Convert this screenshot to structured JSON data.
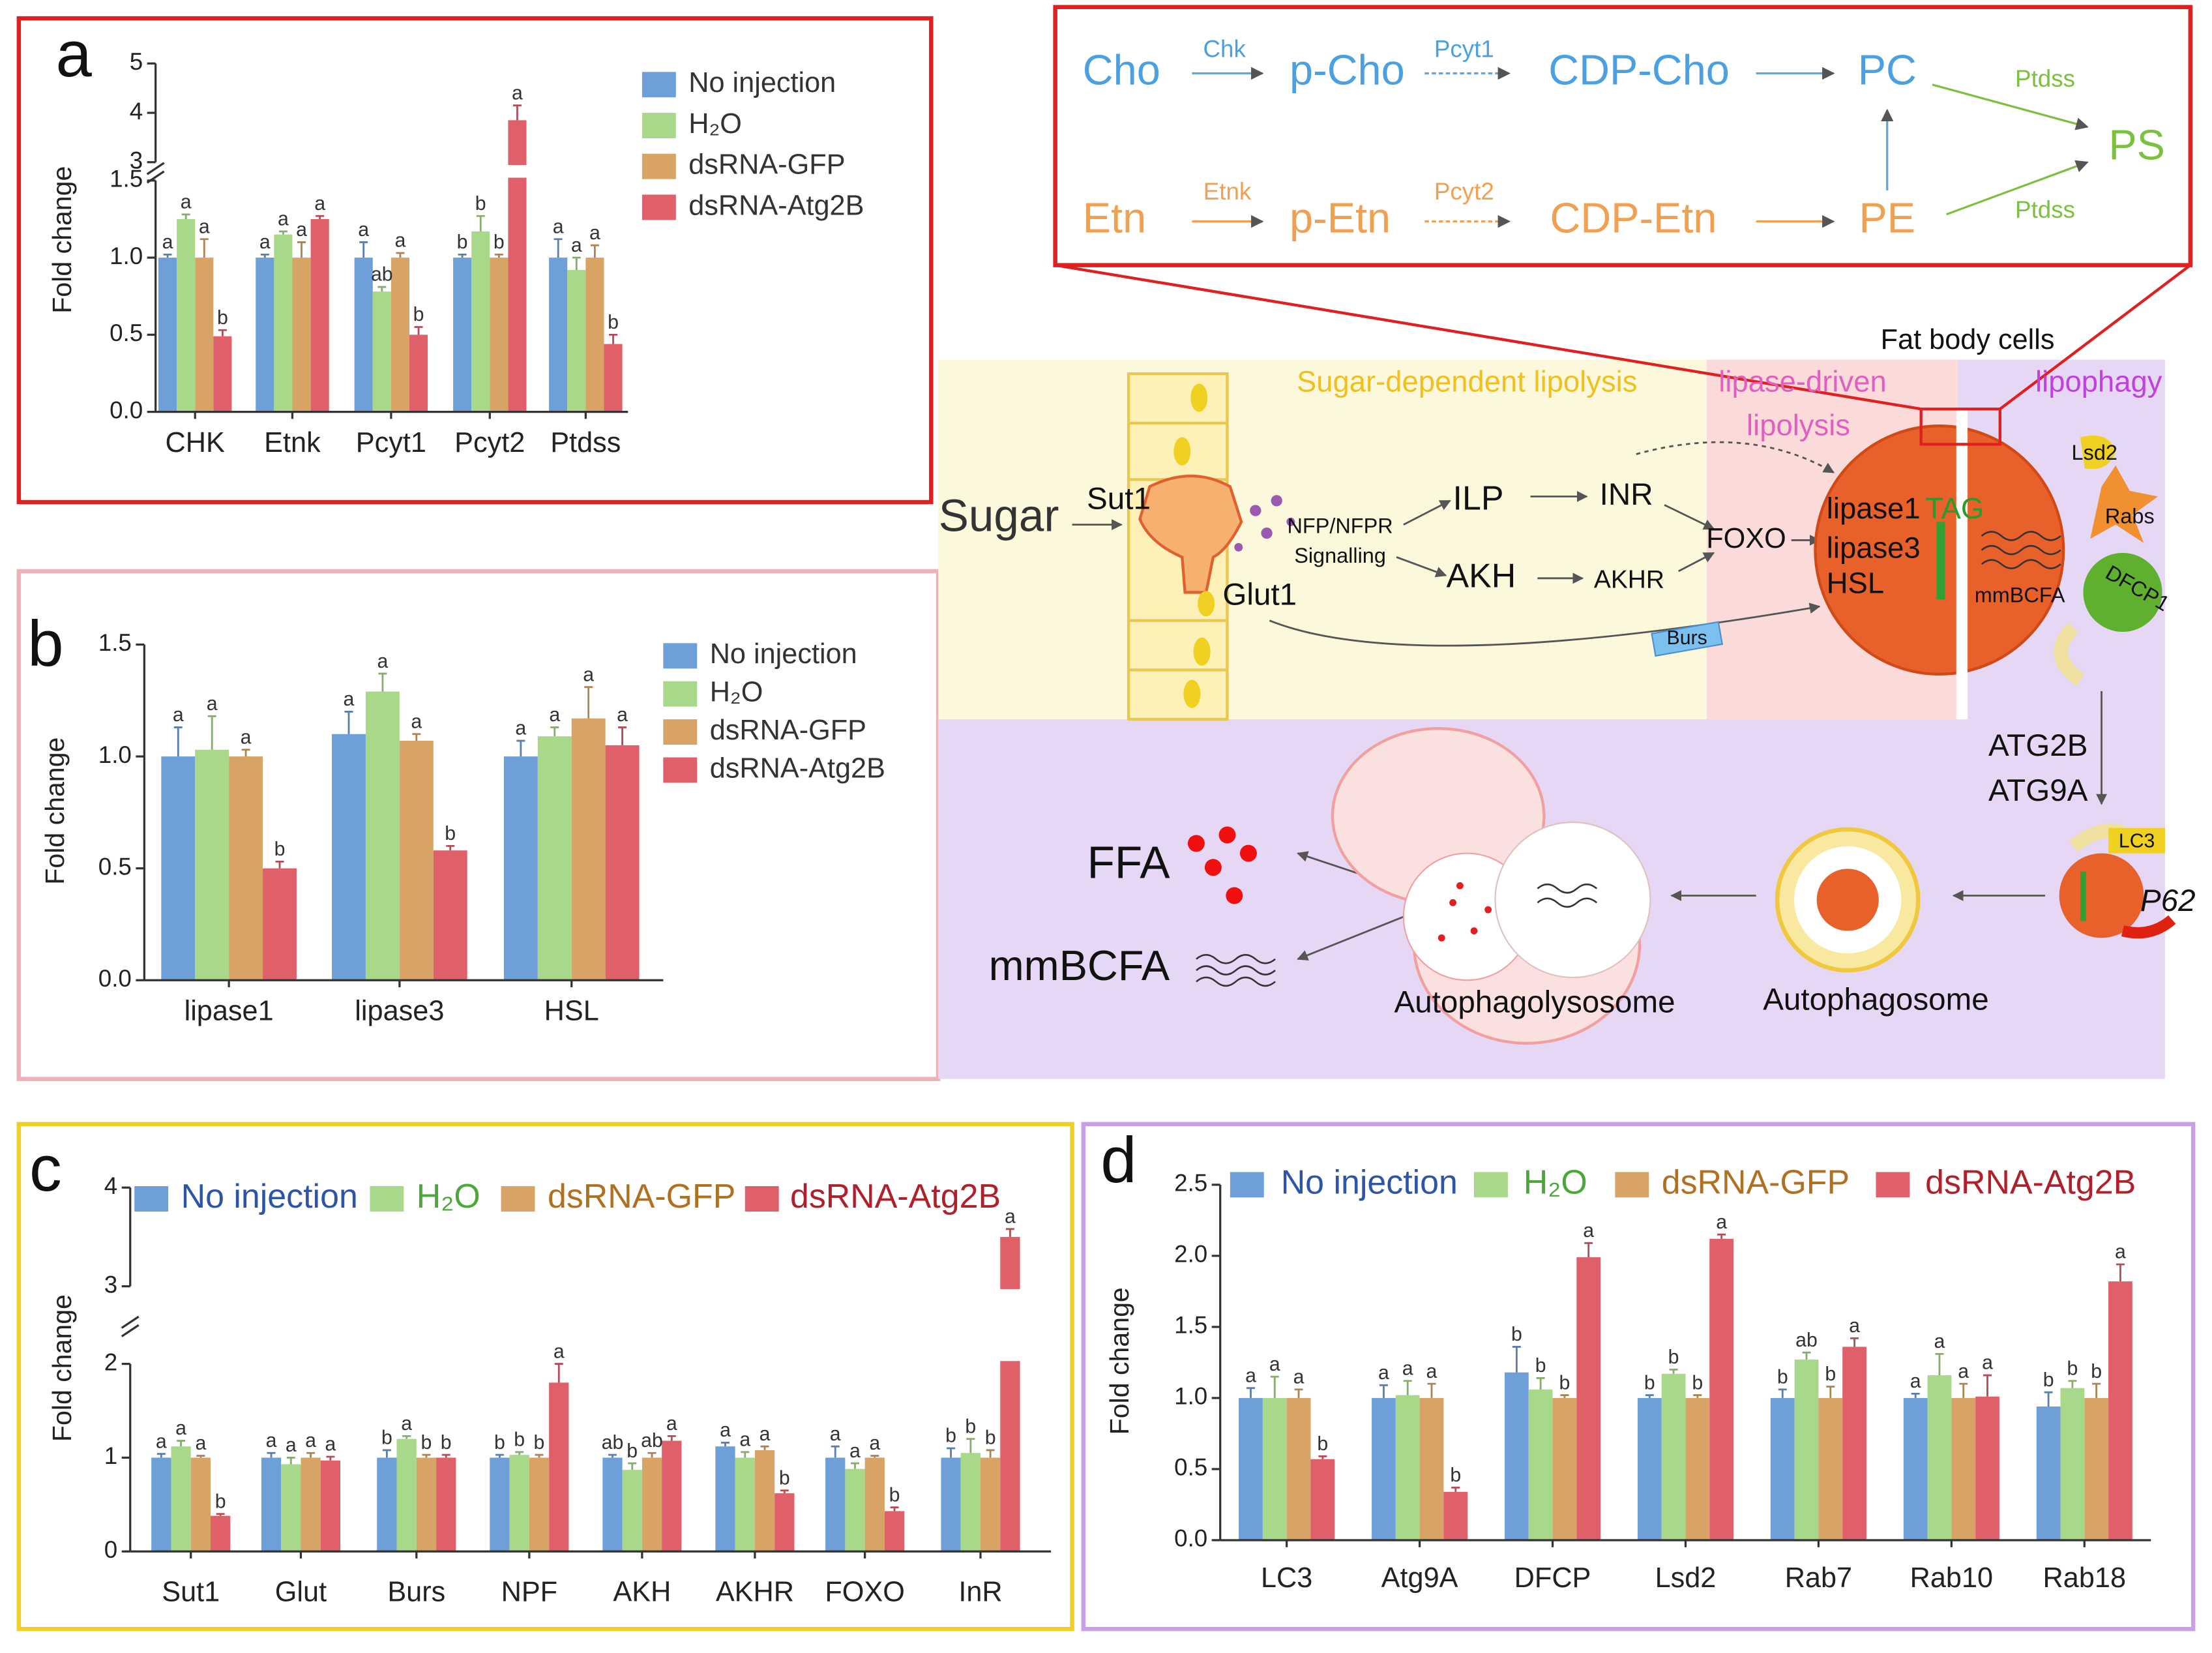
{
  "chart_data": [
    {
      "type": "bar",
      "panel": "a",
      "ylabel": "Fold change",
      "categories": [
        "CHK",
        "Etnk",
        "Pcyt1",
        "Pcyt2",
        "Ptdss"
      ],
      "ylim": [
        0,
        5
      ],
      "ybreak": [
        1.5,
        3
      ],
      "yticks": [
        {
          "value": 0,
          "label": "0.0"
        },
        {
          "value": 0.5,
          "label": "0.5"
        },
        {
          "value": 1,
          "label": "1.0"
        },
        {
          "value": 1.5,
          "label": "1.5"
        },
        3,
        4,
        5
      ],
      "series": [
        {
          "name": "No injection",
          "color": "#6f9fd8",
          "values": [
            1.0,
            1.0,
            1.0,
            1.0,
            1.0
          ],
          "errors": [
            0.02,
            0.02,
            0.1,
            0.02,
            0.12
          ],
          "letters": [
            "a",
            "a",
            "a",
            "b",
            "a"
          ]
        },
        {
          "name": "H₂O",
          "color": "#a8d88a",
          "values": [
            1.25,
            1.15,
            0.78,
            1.17,
            0.92
          ],
          "errors": [
            0.03,
            0.02,
            0.03,
            0.1,
            0.08
          ],
          "letters": [
            "a",
            "a",
            "ab",
            "b",
            "a"
          ]
        },
        {
          "name": "dsRNA-GFP",
          "color": "#d8a466",
          "values": [
            1.0,
            1.0,
            1.0,
            1.0,
            1.0
          ],
          "errors": [
            0.12,
            0.1,
            0.03,
            0.02,
            0.08
          ],
          "letters": [
            "a",
            "a",
            "a",
            "b",
            "a"
          ]
        },
        {
          "name": "dsRNA-Atg2B",
          "color": "#e0606a",
          "values": [
            0.49,
            1.25,
            0.5,
            3.85,
            0.44
          ],
          "errors": [
            0.04,
            0.02,
            0.05,
            0.3,
            0.06
          ],
          "letters": [
            "b",
            "a",
            "b",
            "a",
            "b"
          ]
        }
      ]
    },
    {
      "type": "bar",
      "panel": "b",
      "ylabel": "Fold change",
      "categories": [
        "lipase1",
        "lipase3",
        "HSL"
      ],
      "ylim": [
        0,
        1.5
      ],
      "yticks": [
        {
          "value": 0,
          "label": "0.0"
        },
        {
          "value": 0.5,
          "label": "0.5"
        },
        {
          "value": 1,
          "label": "1.0"
        },
        {
          "value": 1.5,
          "label": "1.5"
        }
      ],
      "series": [
        {
          "name": "No injection",
          "color": "#6f9fd8",
          "values": [
            1.0,
            1.1,
            1.0
          ],
          "errors": [
            0.13,
            0.1,
            0.07
          ],
          "letters": [
            "a",
            "a",
            "a"
          ]
        },
        {
          "name": "H₂O",
          "color": "#a8d88a",
          "values": [
            1.03,
            1.29,
            1.09
          ],
          "errors": [
            0.15,
            0.08,
            0.04
          ],
          "letters": [
            "a",
            "a",
            "a"
          ]
        },
        {
          "name": "dsRNA-GFP",
          "color": "#d8a466",
          "values": [
            1.0,
            1.07,
            1.17
          ],
          "errors": [
            0.03,
            0.03,
            0.14
          ],
          "letters": [
            "a",
            "a",
            "a"
          ]
        },
        {
          "name": "dsRNA-Atg2B",
          "color": "#e0606a",
          "values": [
            0.5,
            0.58,
            1.05
          ],
          "errors": [
            0.03,
            0.02,
            0.08
          ],
          "letters": [
            "b",
            "b",
            "a"
          ]
        }
      ]
    },
    {
      "type": "bar",
      "panel": "c",
      "ylabel": "Fold change",
      "categories": [
        "Sut1",
        "Glut",
        "Burs",
        "NPF",
        "AKH",
        "AKHR",
        "FOXO",
        "InR"
      ],
      "ylim": [
        0,
        4
      ],
      "ybreak": [
        2,
        3
      ],
      "yticks": [
        0,
        1,
        2,
        3,
        4
      ],
      "series": [
        {
          "name": "No injection",
          "color": "#6f9fd8",
          "label_color": "#2c55a8",
          "values": [
            1,
            1,
            1,
            1,
            1,
            1.12,
            1,
            1
          ],
          "errors": [
            0.04,
            0.05,
            0.08,
            0.03,
            0.03,
            0.04,
            0.12,
            0.1
          ],
          "letters": [
            "a",
            "a",
            "b",
            "b",
            "ab",
            "a",
            "a",
            "b"
          ]
        },
        {
          "name": "H₂O",
          "color": "#a8d88a",
          "label_color": "#4aa838",
          "values": [
            1.12,
            0.93,
            1.2,
            1.03,
            0.87,
            1.0,
            0.88,
            1.05
          ],
          "errors": [
            0.06,
            0.07,
            0.03,
            0.03,
            0.07,
            0.06,
            0.06,
            0.15
          ],
          "letters": [
            "a",
            "a",
            "a",
            "b",
            "b",
            "a",
            "a",
            "b"
          ]
        },
        {
          "name": "dsRNA-GFP",
          "color": "#d8a466",
          "label_color": "#b07020",
          "values": [
            1.0,
            1.0,
            1.0,
            1.0,
            1.0,
            1.08,
            1.0,
            1.0
          ],
          "errors": [
            0.02,
            0.05,
            0.03,
            0.03,
            0.05,
            0.04,
            0.02,
            0.08
          ],
          "letters": [
            "a",
            "a",
            "b",
            "b",
            "ab",
            "a",
            "a",
            "b"
          ]
        },
        {
          "name": "dsRNA-Atg2B",
          "color": "#e0606a",
          "label_color": "#b0202a",
          "values": [
            0.38,
            0.97,
            1.0,
            1.8,
            1.18,
            0.62,
            0.43,
            3.5
          ],
          "errors": [
            0.02,
            0.04,
            0.03,
            0.2,
            0.05,
            0.03,
            0.04,
            0.08
          ],
          "letters": [
            "b",
            "a",
            "b",
            "a",
            "a",
            "b",
            "b",
            "a"
          ]
        }
      ]
    },
    {
      "type": "bar",
      "panel": "d",
      "ylabel": "Fold change",
      "categories": [
        "LC3",
        "Atg9A",
        "DFCP",
        "Lsd2",
        "Rab7",
        "Rab10",
        "Rab18"
      ],
      "ylim": [
        0,
        2.5
      ],
      "yticks": [
        {
          "value": 0,
          "label": "0.0"
        },
        {
          "value": 0.5,
          "label": "0.5"
        },
        {
          "value": 1,
          "label": "1.0"
        },
        {
          "value": 1.5,
          "label": "1.5"
        },
        {
          "value": 2,
          "label": "2.0"
        },
        {
          "value": 2.5,
          "label": "2.5"
        }
      ],
      "series": [
        {
          "name": "No injection",
          "color": "#6f9fd8",
          "label_color": "#2c55a8",
          "values": [
            1.0,
            1.0,
            1.18,
            1.0,
            1.0,
            1.0,
            0.94
          ],
          "errors": [
            0.07,
            0.09,
            0.18,
            0.02,
            0.06,
            0.03,
            0.1
          ],
          "letters": [
            "a",
            "a",
            "b",
            "b",
            "b",
            "a",
            "b"
          ]
        },
        {
          "name": "H₂O",
          "color": "#a8d88a",
          "label_color": "#4aa838",
          "values": [
            1.0,
            1.02,
            1.06,
            1.17,
            1.27,
            1.16,
            1.07
          ],
          "errors": [
            0.15,
            0.1,
            0.08,
            0.03,
            0.05,
            0.15,
            0.05
          ],
          "letters": [
            "a",
            "a",
            "b",
            "b",
            "ab",
            "a",
            "b"
          ]
        },
        {
          "name": "dsRNA-GFP",
          "color": "#d8a466",
          "label_color": "#b07020",
          "values": [
            1.0,
            1.0,
            1.0,
            1.0,
            1.0,
            1.0,
            1.0
          ],
          "errors": [
            0.06,
            0.1,
            0.02,
            0.02,
            0.08,
            0.1,
            0.1
          ],
          "letters": [
            "a",
            "a",
            "b",
            "b",
            "b",
            "a",
            "b"
          ]
        },
        {
          "name": "dsRNA-Atg2B",
          "color": "#e0606a",
          "label_color": "#b0202a",
          "values": [
            0.57,
            0.34,
            1.99,
            2.12,
            1.36,
            1.01,
            1.82
          ],
          "errors": [
            0.02,
            0.03,
            0.1,
            0.03,
            0.06,
            0.15,
            0.12
          ],
          "letters": [
            "b",
            "b",
            "a",
            "a",
            "a",
            "a",
            "a"
          ]
        }
      ]
    }
  ],
  "diagram": {
    "pathway": [
      "Cho",
      "Chk",
      "p-Cho",
      "Pcyt1",
      "CDP-Cho",
      "PC",
      "Ptdss",
      "PS",
      "Etn",
      "Etnk",
      "p-Etn",
      "Pcyt2",
      "CDP-Etn",
      "PE",
      "Ptdss"
    ],
    "labels": [
      "Fat body cells",
      "Sugar-dependent lipolysis",
      "lipase-driven",
      "lipolysis",
      "lipophagy",
      "Sugar",
      "Sut1",
      "NFP/NFPR",
      "Signalling",
      "Glut1",
      "ILP",
      "INR",
      "AKH",
      "AKHR",
      "FOXO",
      "Burs",
      "lipase1",
      "TAG",
      "lipase3",
      "HSL",
      "mmBCFA",
      "Lsd2",
      "Rabs",
      "DFCP1",
      "ATG2B",
      "ATG9A",
      "LC3",
      "P62",
      "FFA",
      "mmBCFA",
      "Autophagolysosome",
      "Autophagosome"
    ]
  }
}
